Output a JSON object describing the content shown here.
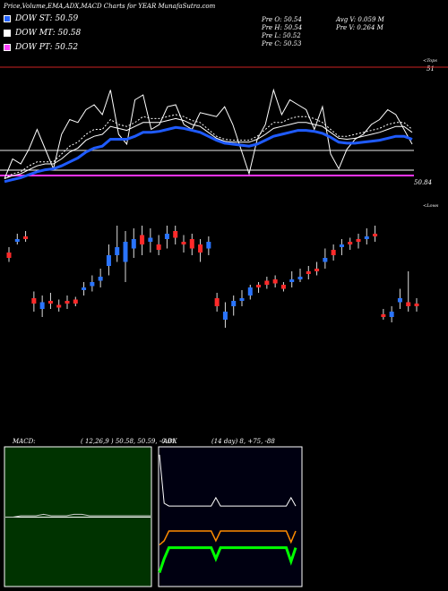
{
  "header": {
    "title": "Price,Volume,EMA,ADX,MACD Charts for YEAR MunafaSutra.com"
  },
  "legend": [
    {
      "label": "DOW ST: 50.59",
      "color": "#2563ff"
    },
    {
      "label": "DOW MT: 50.58",
      "color": "#ffffff"
    },
    {
      "label": "DOW PT: 50.52",
      "color": "#ff44ff"
    }
  ],
  "prev": {
    "open": "Pre  O: 50.54",
    "high": "Pre  H: 50.54",
    "low": "Pre  L: 50.52",
    "close": "Pre  C: 50.53"
  },
  "volume": {
    "avg": "Avg V: 0.059  M",
    "prev": "Pre  V: 0.264  M"
  },
  "upper_panel": {
    "top_label": "<Tops",
    "tops_value": "51",
    "price_value": "50.84",
    "lower_label": "<Lows"
  },
  "macd_panel": {
    "label": "MACD:",
    "values": "( 12,26,9 ) 50.58,  50.59,  -0.01"
  },
  "adx_panel": {
    "label": "ADX",
    "values": "(14  day) 8,  +75,  -88"
  },
  "colors": {
    "up": "#2a74ff",
    "down": "#ff2a2a",
    "ema_blue": "#1f5bff",
    "white": "#ffffff",
    "magenta": "#ff33ff",
    "green": "#00ff00",
    "orange": "#ff8c00"
  },
  "chart_data": [
    {
      "type": "line",
      "name": "price-ema",
      "series": [
        {
          "values": [
            0.05,
            0.25,
            0.2,
            0.35,
            0.55,
            0.35,
            0.15,
            0.5,
            0.65,
            0.62,
            0.75,
            0.8,
            0.7,
            0.95,
            0.5,
            0.4,
            0.85,
            0.9,
            0.55,
            0.6,
            0.78,
            0.8,
            0.6,
            0.55,
            0.72,
            0.7,
            0.68,
            0.78,
            0.6,
            0.35,
            0.1,
            0.45,
            0.6,
            0.95,
            0.7,
            0.85,
            0.8,
            0.75,
            0.55,
            0.78,
            0.3,
            0.15,
            0.35,
            0.45,
            0.5,
            0.6,
            0.65,
            0.75,
            0.7,
            0.55,
            0.4
          ]
        },
        {
          "values": [
            0.05,
            0.1,
            0.12,
            0.18,
            0.22,
            0.22,
            0.22,
            0.3,
            0.38,
            0.42,
            0.5,
            0.55,
            0.55,
            0.65,
            0.6,
            0.58,
            0.62,
            0.68,
            0.66,
            0.66,
            0.68,
            0.7,
            0.68,
            0.64,
            0.62,
            0.55,
            0.48,
            0.45,
            0.44,
            0.44,
            0.44,
            0.48,
            0.55,
            0.62,
            0.62,
            0.66,
            0.68,
            0.68,
            0.66,
            0.62,
            0.55,
            0.48,
            0.48,
            0.5,
            0.52,
            0.54,
            0.56,
            0.6,
            0.62,
            0.62,
            0.55
          ]
        },
        {
          "values": [
            0.05,
            0.08,
            0.1,
            0.14,
            0.18,
            0.2,
            0.2,
            0.25,
            0.32,
            0.36,
            0.44,
            0.48,
            0.5,
            0.58,
            0.56,
            0.54,
            0.58,
            0.62,
            0.62,
            0.62,
            0.64,
            0.66,
            0.64,
            0.6,
            0.58,
            0.52,
            0.46,
            0.43,
            0.42,
            0.42,
            0.42,
            0.45,
            0.5,
            0.56,
            0.58,
            0.6,
            0.62,
            0.62,
            0.6,
            0.58,
            0.52,
            0.46,
            0.45,
            0.46,
            0.48,
            0.5,
            0.52,
            0.55,
            0.58,
            0.58,
            0.52
          ]
        },
        {
          "values": [
            0.02,
            0.04,
            0.06,
            0.09,
            0.12,
            0.14,
            0.15,
            0.18,
            0.22,
            0.26,
            0.32,
            0.36,
            0.38,
            0.45,
            0.45,
            0.45,
            0.48,
            0.52,
            0.52,
            0.53,
            0.55,
            0.57,
            0.56,
            0.54,
            0.52,
            0.48,
            0.44,
            0.41,
            0.4,
            0.39,
            0.38,
            0.4,
            0.44,
            0.48,
            0.5,
            0.52,
            0.54,
            0.54,
            0.53,
            0.51,
            0.47,
            0.42,
            0.41,
            0.41,
            0.42,
            0.43,
            0.44,
            0.46,
            0.48,
            0.48,
            0.45
          ]
        }
      ]
    },
    {
      "type": "bar",
      "name": "candles",
      "candles": [
        {
          "o": 0.62,
          "c": 0.58,
          "h": 0.66,
          "l": 0.55
        },
        {
          "o": 0.7,
          "c": 0.72,
          "h": 0.76,
          "l": 0.68
        },
        {
          "o": 0.74,
          "c": 0.72,
          "h": 0.78,
          "l": 0.7
        },
        {
          "o": 0.28,
          "c": 0.24,
          "h": 0.33,
          "l": 0.18
        },
        {
          "o": 0.2,
          "c": 0.25,
          "h": 0.3,
          "l": 0.14
        },
        {
          "o": 0.26,
          "c": 0.24,
          "h": 0.32,
          "l": 0.2
        },
        {
          "o": 0.23,
          "c": 0.21,
          "h": 0.27,
          "l": 0.18
        },
        {
          "o": 0.26,
          "c": 0.24,
          "h": 0.3,
          "l": 0.2
        },
        {
          "o": 0.27,
          "c": 0.24,
          "h": 0.29,
          "l": 0.22
        },
        {
          "o": 0.34,
          "c": 0.36,
          "h": 0.4,
          "l": 0.3
        },
        {
          "o": 0.37,
          "c": 0.4,
          "h": 0.45,
          "l": 0.33
        },
        {
          "o": 0.41,
          "c": 0.44,
          "h": 0.5,
          "l": 0.36
        },
        {
          "o": 0.52,
          "c": 0.6,
          "h": 0.68,
          "l": 0.45
        },
        {
          "o": 0.6,
          "c": 0.66,
          "h": 0.82,
          "l": 0.55
        },
        {
          "o": 0.55,
          "c": 0.7,
          "h": 0.78,
          "l": 0.4
        },
        {
          "o": 0.65,
          "c": 0.72,
          "h": 0.8,
          "l": 0.58
        },
        {
          "o": 0.75,
          "c": 0.68,
          "h": 0.82,
          "l": 0.6
        },
        {
          "o": 0.7,
          "c": 0.73,
          "h": 0.8,
          "l": 0.62
        },
        {
          "o": 0.68,
          "c": 0.64,
          "h": 0.75,
          "l": 0.6
        },
        {
          "o": 0.72,
          "c": 0.76,
          "h": 0.82,
          "l": 0.65
        },
        {
          "o": 0.78,
          "c": 0.73,
          "h": 0.82,
          "l": 0.68
        },
        {
          "o": 0.7,
          "c": 0.68,
          "h": 0.75,
          "l": 0.62
        },
        {
          "o": 0.72,
          "c": 0.65,
          "h": 0.76,
          "l": 0.6
        },
        {
          "o": 0.68,
          "c": 0.62,
          "h": 0.72,
          "l": 0.55
        },
        {
          "o": 0.65,
          "c": 0.7,
          "h": 0.74,
          "l": 0.6
        },
        {
          "o": 0.28,
          "c": 0.22,
          "h": 0.32,
          "l": 0.18
        },
        {
          "o": 0.12,
          "c": 0.18,
          "h": 0.25,
          "l": 0.06
        },
        {
          "o": 0.22,
          "c": 0.26,
          "h": 0.3,
          "l": 0.15
        },
        {
          "o": 0.26,
          "c": 0.28,
          "h": 0.34,
          "l": 0.22
        },
        {
          "o": 0.3,
          "c": 0.36,
          "h": 0.38,
          "l": 0.27
        },
        {
          "o": 0.38,
          "c": 0.36,
          "h": 0.4,
          "l": 0.32
        },
        {
          "o": 0.41,
          "c": 0.38,
          "h": 0.44,
          "l": 0.35
        },
        {
          "o": 0.42,
          "c": 0.39,
          "h": 0.45,
          "l": 0.36
        },
        {
          "o": 0.38,
          "c": 0.35,
          "h": 0.4,
          "l": 0.33
        },
        {
          "o": 0.4,
          "c": 0.42,
          "h": 0.48,
          "l": 0.36
        },
        {
          "o": 0.42,
          "c": 0.44,
          "h": 0.5,
          "l": 0.4
        },
        {
          "o": 0.48,
          "c": 0.46,
          "h": 0.52,
          "l": 0.42
        },
        {
          "o": 0.5,
          "c": 0.48,
          "h": 0.55,
          "l": 0.45
        },
        {
          "o": 0.55,
          "c": 0.58,
          "h": 0.65,
          "l": 0.5
        },
        {
          "o": 0.64,
          "c": 0.6,
          "h": 0.68,
          "l": 0.56
        },
        {
          "o": 0.66,
          "c": 0.68,
          "h": 0.72,
          "l": 0.6
        },
        {
          "o": 0.7,
          "c": 0.68,
          "h": 0.73,
          "l": 0.64
        },
        {
          "o": 0.72,
          "c": 0.7,
          "h": 0.76,
          "l": 0.65
        },
        {
          "o": 0.72,
          "c": 0.74,
          "h": 0.8,
          "l": 0.68
        },
        {
          "o": 0.76,
          "c": 0.74,
          "h": 0.82,
          "l": 0.7
        },
        {
          "o": 0.16,
          "c": 0.14,
          "h": 0.2,
          "l": 0.12
        },
        {
          "o": 0.14,
          "c": 0.18,
          "h": 0.22,
          "l": 0.1
        },
        {
          "o": 0.25,
          "c": 0.28,
          "h": 0.35,
          "l": 0.2
        },
        {
          "o": 0.25,
          "c": 0.22,
          "h": 0.48,
          "l": 0.18
        },
        {
          "o": 0.24,
          "c": 0.22,
          "h": 0.28,
          "l": 0.18
        }
      ]
    },
    {
      "type": "line",
      "name": "macd",
      "series": [
        {
          "values": [
            0.5,
            0.5,
            0.5,
            0.5,
            0.5,
            0.5,
            0.5,
            0.5,
            0.5,
            0.5,
            0.5,
            0.5,
            0.5,
            0.5,
            0.5,
            0.5,
            0.5,
            0.5,
            0.5,
            0.5
          ]
        },
        {
          "values": [
            0.5,
            0.5,
            0.51,
            0.51,
            0.51,
            0.52,
            0.51,
            0.51,
            0.51,
            0.52,
            0.52,
            0.51,
            0.51,
            0.51,
            0.51,
            0.51,
            0.51,
            0.51,
            0.51,
            0.51
          ]
        }
      ]
    },
    {
      "type": "line",
      "name": "adx",
      "series": [
        {
          "values": [
            0.95,
            0.6,
            0.58,
            0.58,
            0.58,
            0.58,
            0.58,
            0.58,
            0.58,
            0.58,
            0.58,
            0.58,
            0.64,
            0.58,
            0.58,
            0.58,
            0.58,
            0.58,
            0.58,
            0.58,
            0.58,
            0.58,
            0.58,
            0.58,
            0.58,
            0.58,
            0.58,
            0.58,
            0.64,
            0.58
          ]
        },
        {
          "values": [
            0.3,
            0.33,
            0.4,
            0.4,
            0.4,
            0.4,
            0.4,
            0.4,
            0.4,
            0.4,
            0.4,
            0.4,
            0.33,
            0.4,
            0.4,
            0.4,
            0.4,
            0.4,
            0.4,
            0.4,
            0.4,
            0.4,
            0.4,
            0.4,
            0.4,
            0.4,
            0.4,
            0.4,
            0.32,
            0.4
          ]
        },
        {
          "values": [
            0.1,
            0.2,
            0.28,
            0.28,
            0.28,
            0.28,
            0.28,
            0.28,
            0.28,
            0.28,
            0.28,
            0.28,
            0.2,
            0.28,
            0.28,
            0.28,
            0.28,
            0.28,
            0.28,
            0.28,
            0.28,
            0.28,
            0.28,
            0.28,
            0.28,
            0.28,
            0.28,
            0.28,
            0.18,
            0.28
          ]
        }
      ]
    }
  ]
}
